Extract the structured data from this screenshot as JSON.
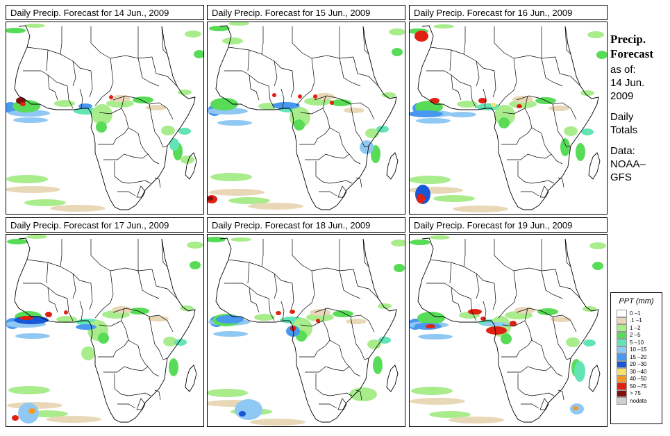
{
  "panels": [
    {
      "title": "Daily Precip. Forecast for  14 Jun., 2009"
    },
    {
      "title": "Daily Precip. Forecast for  15 Jun., 2009"
    },
    {
      "title": "Daily Precip. Forecast for  16 Jun., 2009"
    },
    {
      "title": "Daily Precip. Forecast for  17 Jun., 2009"
    },
    {
      "title": "Daily Precip. Forecast for  18 Jun., 2009"
    },
    {
      "title": "Daily Precip. Forecast for  19 Jun., 2009"
    }
  ],
  "sidebar": {
    "heading1": "Precip.",
    "heading2": "Forecast",
    "asof": "as of:",
    "date1": "14 Jun.",
    "date2": "2009",
    "daily": "Daily",
    "totals": "Totals",
    "data": "Data:",
    "src1": "NOAA–",
    "src2": "GFS"
  },
  "legend": {
    "title": "PPT (mm)",
    "items": [
      {
        "label": "0 –1",
        "color": "#ffffff"
      },
      {
        "label": ".1 –1",
        "color": "#e9d8b8"
      },
      {
        "label": "1 –2",
        "color": "#a8ec8c"
      },
      {
        "label": "2 –5",
        "color": "#58dc58"
      },
      {
        "label": "5 –10",
        "color": "#62e4b4"
      },
      {
        "label": "10 –15",
        "color": "#90c8f4"
      },
      {
        "label": "15 –20",
        "color": "#4898f0"
      },
      {
        "label": "20 –30",
        "color": "#1858d8"
      },
      {
        "label": "30 –40",
        "color": "#f8e070"
      },
      {
        "label": "40 –50",
        "color": "#f89820"
      },
      {
        "label": "50 –75",
        "color": "#e02010"
      },
      {
        "label": "> 75",
        "color": "#801010"
      },
      {
        "label": "nodata",
        "color": "#d0d0d0"
      }
    ]
  }
}
